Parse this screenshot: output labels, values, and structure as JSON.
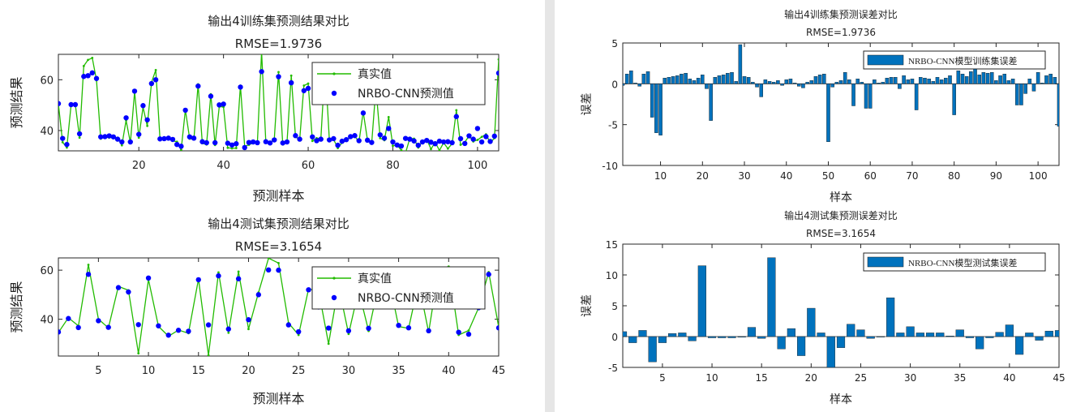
{
  "chart_data": [
    {
      "type": "line",
      "title": "输出4训练集预测结果对比",
      "subtitle": "RMSE=1.9736",
      "xlabel": "预测样本",
      "ylabel": "预测结果",
      "xlim": [
        1,
        105
      ],
      "ylim": [
        32,
        70
      ],
      "xticks": [
        20,
        40,
        60,
        80,
        100
      ],
      "yticks": [
        40,
        60
      ],
      "legend_position": "top-right",
      "series": [
        {
          "name": "真实值",
          "style": "line",
          "color": "#22bb00",
          "values": [
            50.5,
            35.4,
            33.3,
            50.2,
            50.2,
            37.2,
            65.4,
            67.8,
            68.6,
            59.8,
            36.8,
            37.4,
            37.2,
            37.3,
            37.2,
            34.2,
            44.0,
            35.2,
            55.3,
            37.2,
            49.2,
            41.8,
            59.0,
            63.8,
            36.6,
            36.9,
            37.5,
            35.9,
            35.6,
            32.4,
            48.1,
            36.8,
            36.5,
            58.2,
            35.0,
            34.5,
            54.3,
            34.3,
            49.4,
            49.3,
            33.2,
            33.0,
            33.1,
            57.7,
            33.8,
            34.4,
            35.1,
            35.2,
            71.0,
            35.5,
            35.1,
            36.8,
            63.0,
            34.5,
            35.2,
            61.6,
            37.5,
            36.5,
            57.7,
            58.5,
            35.9,
            37.0,
            36.8,
            66.0,
            36.1,
            36.5,
            33.1,
            35.2,
            36.1,
            37.4,
            37.8,
            35.5,
            47.4,
            36.4,
            35.1,
            57.0,
            37.0,
            36.2,
            45.3,
            34.0,
            34.2,
            32.3,
            31.2,
            36.9,
            36.8,
            33.3,
            35.8,
            36.6,
            32.7,
            35.4,
            32.2,
            35.2,
            32.9,
            34.8,
            48.0,
            34.4,
            35.4,
            37.9,
            35.7,
            36.3,
            37.5,
            38.5,
            35.2,
            37.0,
            68.0
          ]
        },
        {
          "name": "NRBO-CNN预测值",
          "style": "markers",
          "color": "#0000ff",
          "values": [
            50.6,
            36.9,
            34.5,
            50.2,
            50.2,
            38.7,
            61.3,
            61.6,
            62.7,
            60.5,
            37.5,
            37.6,
            37.9,
            37.5,
            36.6,
            35.5,
            45.0,
            35.5,
            55.5,
            38.5,
            49.8,
            44.2,
            58.5,
            60.0,
            36.7,
            36.8,
            37.0,
            36.5,
            34.5,
            33.8,
            48.0,
            37.5,
            37.0,
            57.5,
            35.6,
            35.2,
            53.5,
            35.2,
            50.1,
            50.4,
            35.0,
            34.3,
            34.8,
            57.1,
            33.3,
            35.3,
            35.5,
            35.2,
            63.2,
            35.6,
            35.1,
            36.3,
            61.2,
            35.1,
            35.5,
            58.8,
            38.0,
            36.6,
            55.7,
            56.6,
            37.5,
            36.0,
            36.6,
            60.5,
            36.3,
            36.8,
            34.2,
            35.8,
            36.4,
            37.6,
            38.0,
            36.0,
            46.9,
            36.2,
            35.3,
            55.9,
            38.3,
            37.0,
            40.8,
            35.5,
            34.3,
            33.9,
            36.9,
            36.6,
            35.9,
            34.2,
            35.5,
            36.1,
            35.4,
            34.8,
            35.8,
            35.5,
            35.6,
            35.2,
            45.5,
            36.8,
            34.9,
            37.9,
            36.6,
            40.8,
            35.5,
            37.6,
            35.7,
            37.8,
            62.6
          ]
        }
      ]
    },
    {
      "type": "line",
      "title": "输出4测试集预测结果对比",
      "subtitle": "RMSE=3.1654",
      "xlabel": "预测样本",
      "ylabel": "预测结果",
      "xlim": [
        1,
        45
      ],
      "ylim": [
        25,
        65
      ],
      "xticks": [
        5,
        10,
        15,
        20,
        25,
        30,
        35,
        40,
        45
      ],
      "yticks": [
        40,
        60
      ],
      "legend_position": "top-right",
      "series": [
        {
          "name": "真实值",
          "style": "line",
          "color": "#22bb00",
          "values": [
            34.6,
            40.6,
            37.3,
            62.2,
            40.0,
            36.5,
            53.4,
            51.8,
            26.1,
            56.2,
            37.1,
            33.1,
            35.6,
            34.3,
            56.4,
            25.3,
            59.1,
            34.5,
            59.4,
            36.0,
            50.9,
            64.9,
            62.9,
            38.5,
            33.6,
            52.3,
            51.6,
            30.0,
            53.6,
            34.0,
            51.8,
            35.2,
            54.1,
            56.7,
            37.0,
            36.3,
            55.0,
            34.7,
            60.6,
            61.5,
            33.6,
            35.4,
            44.7,
            59.2,
            36.8
          ]
        },
        {
          "name": "NRBO-CNN预测值",
          "style": "markers",
          "color": "#0000ff",
          "values": [
            34.8,
            40.3,
            36.6,
            58.3,
            39.4,
            36.7,
            52.9,
            51.1,
            37.8,
            56.8,
            37.3,
            33.5,
            35.5,
            35.1,
            56.1,
            37.7,
            57.7,
            36.0,
            56.5,
            39.8,
            50.0,
            60.1,
            60.0,
            37.7,
            34.9,
            52.0,
            45.0,
            36.4,
            52.2,
            35.3,
            51.9,
            36.3,
            54.4,
            56.6,
            37.5,
            36.5,
            55.1,
            35.3,
            60.0,
            59.7,
            34.7,
            33.9,
            44.7,
            58.3,
            36.5
          ]
        }
      ]
    },
    {
      "type": "bar",
      "title": "输出4训练集预测误差对比",
      "subtitle": "RMSE=1.9736",
      "xlabel": "样本",
      "ylabel": "误差",
      "xlim": [
        1,
        105
      ],
      "ylim": [
        -10,
        5
      ],
      "xticks": [
        10,
        20,
        30,
        40,
        50,
        60,
        70,
        80,
        90,
        100
      ],
      "yticks": [
        -10,
        -5,
        0,
        5
      ],
      "legend_position": "top-right",
      "series": [
        {
          "name": "NRBO-CNN模型训练集误差",
          "color": "#0072bd",
          "values": [
            -0.2,
            1.2,
            1.6,
            0.1,
            -0.3,
            1.2,
            1.5,
            -4.1,
            -6.0,
            -6.3,
            0.7,
            0.8,
            0.9,
            1.0,
            1.2,
            1.3,
            0.6,
            0.4,
            0.7,
            1.1,
            -0.6,
            -4.5,
            0.8,
            1.0,
            1.1,
            1.3,
            1.4,
            0.3,
            4.8,
            0.9,
            0.8,
            0.2,
            -0.4,
            -1.6,
            0.5,
            0.3,
            0.2,
            0.4,
            -0.2,
            0.5,
            0.6,
            0.1,
            -0.3,
            -0.5,
            0.2,
            0.4,
            0.9,
            1.1,
            1.2,
            -7.1,
            -0.4,
            0.2,
            0.4,
            1.4,
            0.5,
            -2.7,
            0.6,
            0.2,
            -3.0,
            -3.0,
            0.5,
            0.1,
            0.2,
            0.7,
            0.8,
            0.8,
            -0.6,
            1.0,
            0.5,
            0.6,
            -3.2,
            0.8,
            0.7,
            0.6,
            0.3,
            0.8,
            0.5,
            0.7,
            1.0,
            -3.8,
            1.6,
            1.2,
            0.9,
            1.5,
            1.8,
            1.1,
            1.4,
            1.3,
            1.4,
            0.4,
            1.0,
            1.2,
            0.4,
            0.6,
            -2.6,
            -2.6,
            -1.2,
            0.6,
            -0.9,
            1.4,
            0.1,
            1.0,
            1.2,
            0.8,
            -5.2
          ]
        }
      ]
    },
    {
      "type": "bar",
      "title": "输出4测试集预测误差对比",
      "subtitle": "RMSE=3.1654",
      "xlabel": "样本",
      "ylabel": "误差",
      "xlim": [
        1,
        45
      ],
      "ylim": [
        -5,
        15
      ],
      "xticks": [
        5,
        10,
        15,
        20,
        25,
        30,
        35,
        40,
        45
      ],
      "yticks": [
        -5,
        0,
        5,
        10,
        15
      ],
      "legend_position": "top-right",
      "series": [
        {
          "name": "NRBO-CNN模型测试集误差",
          "color": "#0072bd",
          "values": [
            0.8,
            -1.0,
            1.0,
            -4.1,
            -1.0,
            0.5,
            0.6,
            -0.7,
            11.5,
            -0.2,
            -0.2,
            -0.2,
            -0.1,
            1.5,
            -0.3,
            12.8,
            -2.0,
            1.3,
            -3.1,
            4.6,
            0.6,
            -5.0,
            -1.8,
            2.0,
            1.1,
            -0.3,
            0.0,
            6.3,
            0.6,
            1.6,
            0.6,
            0.6,
            0.6,
            0.1,
            1.1,
            -0.2,
            -2.0,
            -0.2,
            0.7,
            1.9,
            -2.9,
            0.6,
            -0.6,
            0.9,
            1.0
          ]
        }
      ]
    }
  ]
}
